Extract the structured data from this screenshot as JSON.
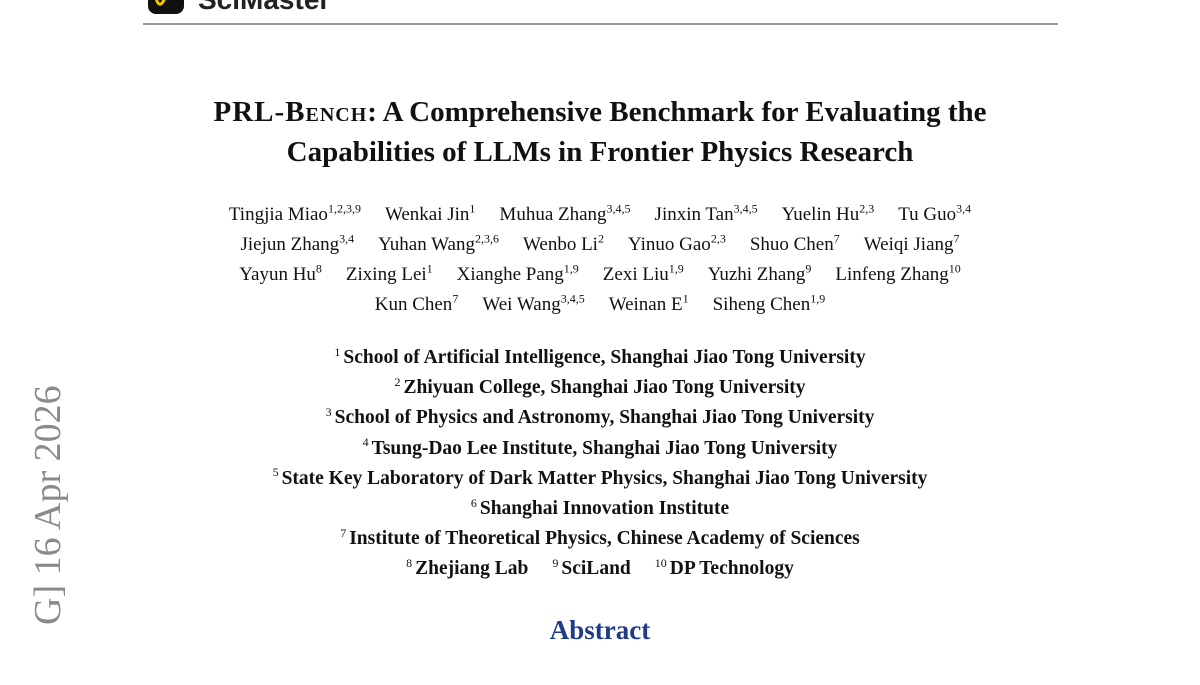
{
  "header": {
    "logo_text": "SciMaster"
  },
  "paper": {
    "title_prefix": "PRL-Bench",
    "title_rest_line1": ": A Comprehensive Benchmark for Evaluating the",
    "title_line2": "Capabilities of LLMs in Frontier Physics Research",
    "author_lines": [
      [
        {
          "name": "Tingjia Miao",
          "aff": "1,2,3,9"
        },
        {
          "name": "Wenkai Jin",
          "aff": "1"
        },
        {
          "name": "Muhua Zhang",
          "aff": "3,4,5"
        },
        {
          "name": "Jinxin Tan",
          "aff": "3,4,5"
        },
        {
          "name": "Yuelin Hu",
          "aff": "2,3"
        },
        {
          "name": "Tu Guo",
          "aff": "3,4"
        }
      ],
      [
        {
          "name": "Jiejun Zhang",
          "aff": "3,4"
        },
        {
          "name": "Yuhan Wang",
          "aff": "2,3,6"
        },
        {
          "name": "Wenbo Li",
          "aff": "2"
        },
        {
          "name": "Yinuo Gao",
          "aff": "2,3"
        },
        {
          "name": "Shuo Chen",
          "aff": "7"
        },
        {
          "name": "Weiqi Jiang",
          "aff": "7"
        }
      ],
      [
        {
          "name": "Yayun Hu",
          "aff": "8"
        },
        {
          "name": "Zixing Lei",
          "aff": "1"
        },
        {
          "name": "Xianghe Pang",
          "aff": "1,9"
        },
        {
          "name": "Zexi Liu",
          "aff": "1,9"
        },
        {
          "name": "Yuzhi Zhang",
          "aff": "9"
        },
        {
          "name": "Linfeng Zhang",
          "aff": "10"
        }
      ],
      [
        {
          "name": "Kun Chen",
          "aff": "7"
        },
        {
          "name": "Wei Wang",
          "aff": "3,4,5"
        },
        {
          "name": "Weinan E",
          "aff": "1"
        },
        {
          "name": "Siheng Chen",
          "aff": "1,9"
        }
      ]
    ],
    "affiliation_lines": [
      [
        {
          "num": "1",
          "name": "School of Artificial Intelligence, Shanghai Jiao Tong University"
        }
      ],
      [
        {
          "num": "2",
          "name": "Zhiyuan College, Shanghai Jiao Tong University"
        }
      ],
      [
        {
          "num": "3",
          "name": "School of Physics and Astronomy, Shanghai Jiao Tong University"
        }
      ],
      [
        {
          "num": "4",
          "name": "Tsung-Dao Lee Institute, Shanghai Jiao Tong University"
        }
      ],
      [
        {
          "num": "5",
          "name": "State Key Laboratory of Dark Matter Physics, Shanghai Jiao Tong University"
        }
      ],
      [
        {
          "num": "6",
          "name": "Shanghai Innovation Institute"
        }
      ],
      [
        {
          "num": "7",
          "name": "Institute of Theoretical Physics, Chinese Academy of Sciences"
        }
      ],
      [
        {
          "num": "8",
          "name": "Zhejiang Lab"
        },
        {
          "num": "9",
          "name": "SciLand"
        },
        {
          "num": "10",
          "name": "DP Technology"
        }
      ]
    ],
    "abstract_heading": "Abstract"
  },
  "arxiv_stamp": "G]  16 Apr 2026"
}
